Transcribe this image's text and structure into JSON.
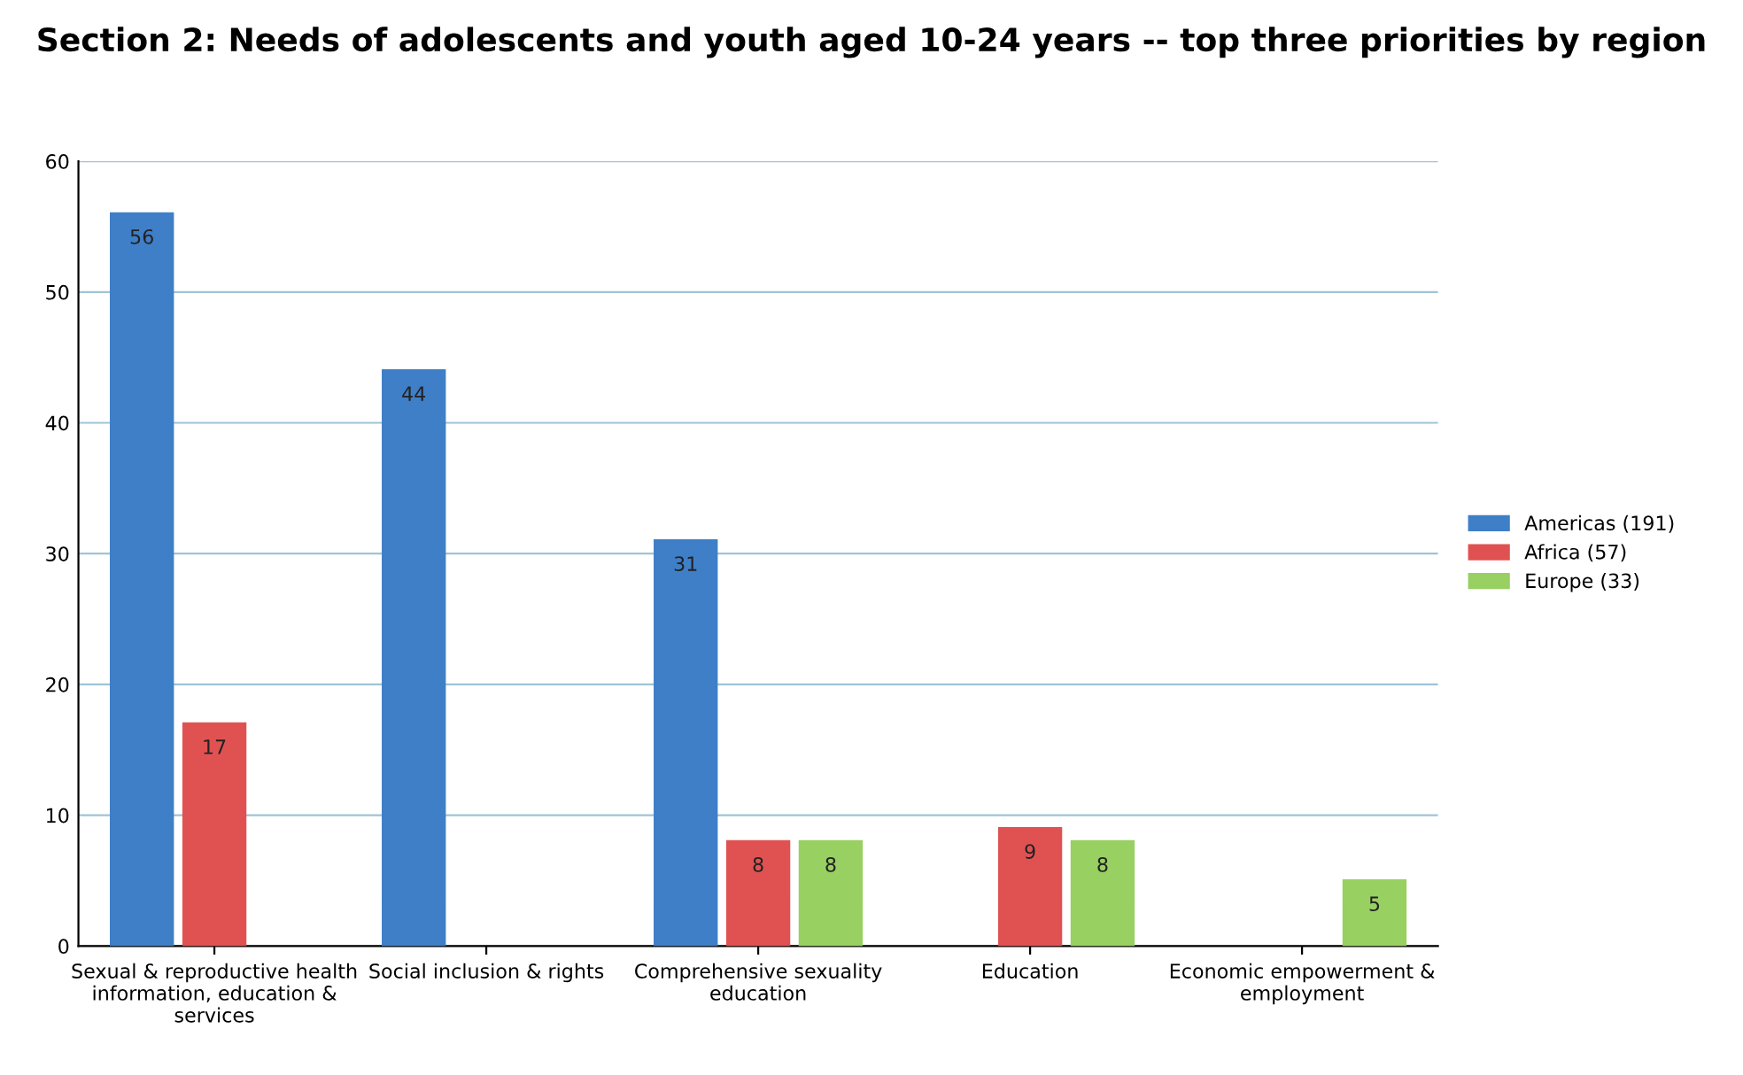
{
  "chart_data": {
    "type": "bar",
    "title": "Section 2: Needs of adolescents and youth aged 10-24 years -- top three priorities by region",
    "categories": [
      "Sexual & reproductive health information, education & services",
      "Social inclusion & rights",
      "Comprehensive sexuality education",
      "Education",
      "Economic empowerment & employment"
    ],
    "series": [
      {
        "name": "Americas (191)",
        "color": "#3f7fc8",
        "values": [
          56,
          44,
          31,
          null,
          null
        ]
      },
      {
        "name": "Africa (57)",
        "color": "#e05252",
        "values": [
          17,
          null,
          8,
          9,
          null
        ]
      },
      {
        "name": "Europe (33)",
        "color": "#98d062",
        "values": [
          null,
          null,
          8,
          8,
          5
        ]
      }
    ],
    "ylim": [
      0,
      60
    ],
    "yticks": [
      0,
      10,
      20,
      30,
      40,
      50,
      60
    ],
    "grid": "y",
    "legend": "right",
    "data_labels": true
  }
}
